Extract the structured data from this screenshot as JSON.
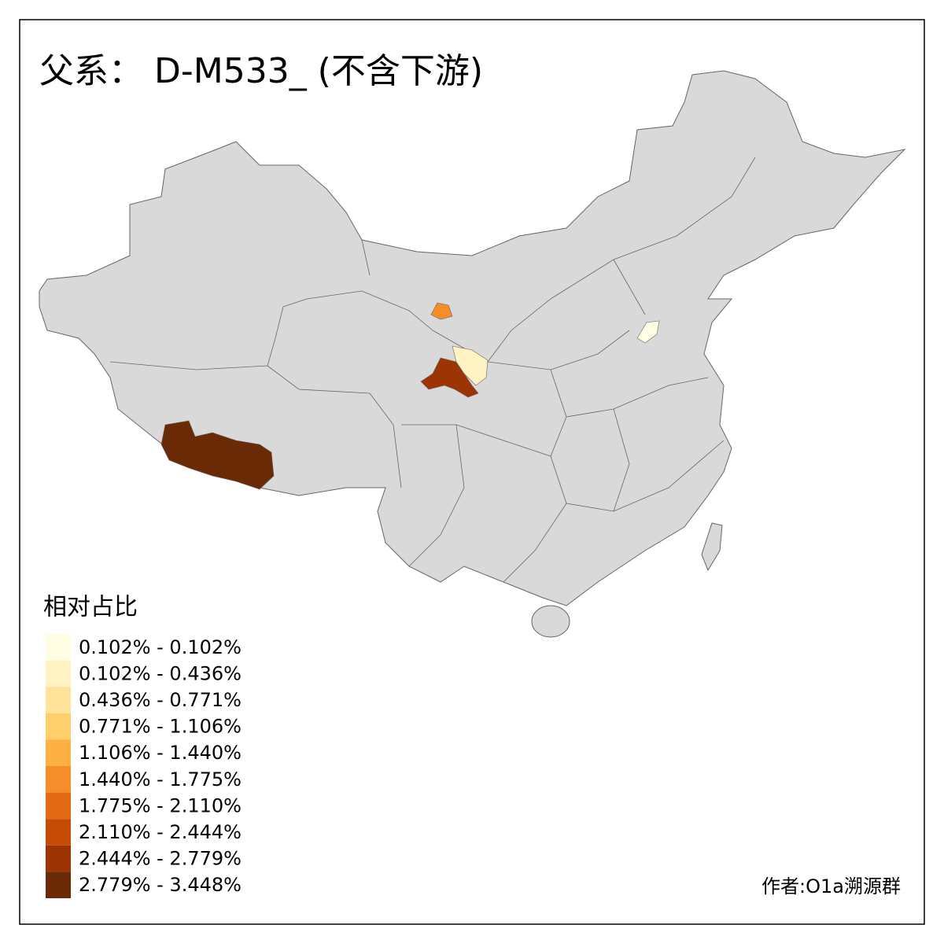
{
  "title": "父系： D-M533_ (不含下游)",
  "legend": {
    "title": "相对占比",
    "items": [
      {
        "label": "0.102% - 0.102%",
        "color": "#fffde3"
      },
      {
        "label": "0.102% - 0.436%",
        "color": "#fff3c4"
      },
      {
        "label": "0.436% - 0.771%",
        "color": "#fee39b"
      },
      {
        "label": "0.771% - 1.106%",
        "color": "#fecf6a"
      },
      {
        "label": "1.106% - 1.440%",
        "color": "#fdb043"
      },
      {
        "label": "1.440% - 1.775%",
        "color": "#f58d2a"
      },
      {
        "label": "1.775% - 2.110%",
        "color": "#e36a14"
      },
      {
        "label": "2.110% - 2.444%",
        "color": "#c64c06"
      },
      {
        "label": "2.444% - 2.779%",
        "color": "#9c3503"
      },
      {
        "label": "2.779% - 3.448%",
        "color": "#6b2a06"
      }
    ]
  },
  "credit": "作者:O1a溯源群"
}
